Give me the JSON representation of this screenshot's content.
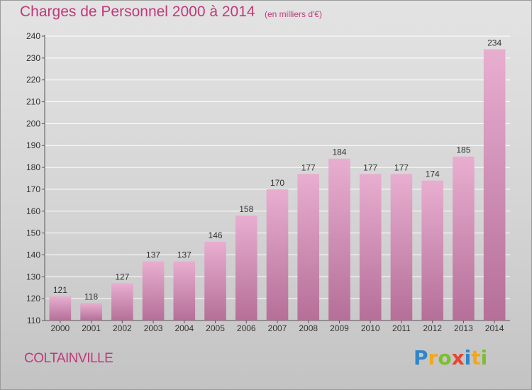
{
  "title": "Charges de Personnel 2000 à 2014",
  "subtitle": "(en milliers d'€)",
  "place": "COLTAINVILLE",
  "logo": {
    "letters": [
      "P",
      "r",
      "o",
      "x",
      "i",
      "t",
      "i"
    ],
    "colors": [
      "#2e86c9",
      "#f0a820",
      "#7cbf2e",
      "#e8442e",
      "#2e86c9",
      "#f0a820",
      "#7cbf2e"
    ]
  },
  "colors": {
    "accent": "#c0397a",
    "bar_top": "#e8aed0",
    "bar_bottom": "#b56f98"
  },
  "chart_data": {
    "type": "bar",
    "categories": [
      "2000",
      "2001",
      "2002",
      "2003",
      "2004",
      "2005",
      "2006",
      "2007",
      "2008",
      "2009",
      "2010",
      "2011",
      "2012",
      "2013",
      "2014"
    ],
    "values": [
      121,
      118,
      127,
      137,
      137,
      146,
      158,
      170,
      177,
      184,
      177,
      177,
      174,
      185,
      234
    ],
    "ylim": [
      110,
      240
    ],
    "yticks": [
      110,
      120,
      130,
      140,
      150,
      160,
      170,
      180,
      190,
      200,
      210,
      220,
      230,
      240
    ],
    "grid": true
  }
}
